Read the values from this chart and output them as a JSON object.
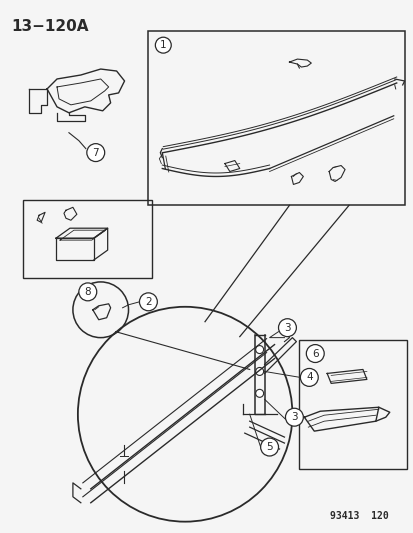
{
  "title": "13−120A",
  "footer": "93413  120",
  "bg_color": "#f5f5f5",
  "line_color": "#2a2a2a",
  "figsize": [
    4.14,
    5.33
  ],
  "dpi": 100
}
